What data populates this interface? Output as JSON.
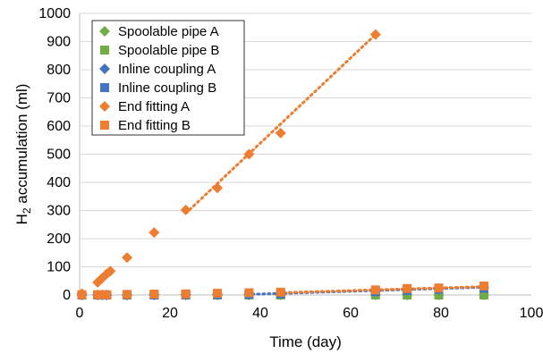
{
  "chart_data": {
    "type": "scatter",
    "xlabel": "Time (day)",
    "ylabel": "H₂ accumulation (ml)",
    "xlim": [
      0,
      100
    ],
    "ylim": [
      0,
      1000
    ],
    "x_ticks": [
      0,
      20,
      40,
      60,
      80,
      100
    ],
    "y_ticks": [
      0,
      100,
      200,
      300,
      400,
      500,
      600,
      700,
      800,
      900,
      1000
    ],
    "grid": "horizontal",
    "legend_position": "top-left",
    "colors": {
      "green": "#70AD47",
      "blue": "#4472C4",
      "orange": "#ED7D31"
    },
    "series": [
      {
        "name": "Spoolable pipe A",
        "marker": "diamond",
        "color": "#70AD47",
        "x": [
          0.5,
          4,
          5,
          6,
          10.5,
          16.5,
          23.5,
          30.5,
          37.5,
          44.5,
          65.5,
          72.5,
          79.5,
          89.5
        ],
        "y": [
          0,
          0,
          0,
          0,
          0,
          0,
          0,
          0,
          0,
          0,
          0,
          0,
          0,
          0
        ]
      },
      {
        "name": "Spoolable pipe B",
        "marker": "square",
        "color": "#70AD47",
        "x": [
          0.5,
          4,
          5,
          6,
          10.5,
          16.5,
          23.5,
          30.5,
          37.5,
          44.5,
          65.5,
          72.5,
          79.5,
          89.5
        ],
        "y": [
          0,
          0,
          0,
          0,
          0,
          0,
          0,
          0,
          0,
          0,
          0,
          0,
          0,
          0
        ]
      },
      {
        "name": "Inline coupling A",
        "marker": "diamond",
        "color": "#4472C4",
        "trend": true,
        "trend_x": [
          37,
          90
        ],
        "trend_y": [
          2,
          28
        ],
        "x": [
          0.5,
          4,
          5,
          6,
          10.5,
          16.5,
          23.5,
          30.5,
          37.5,
          44.5,
          65.5,
          72.5,
          79.5,
          89.5
        ],
        "y": [
          0,
          0,
          0,
          0,
          0,
          1,
          1,
          2,
          3,
          5,
          14,
          18,
          21,
          26
        ]
      },
      {
        "name": "Inline coupling B",
        "marker": "square",
        "color": "#4472C4",
        "x": [
          0.5,
          4,
          5,
          6,
          10.5,
          16.5,
          23.5,
          30.5,
          37.5,
          44.5,
          65.5,
          72.5,
          79.5,
          89.5
        ],
        "y": [
          0,
          0,
          0,
          0,
          0,
          0,
          1,
          1,
          2,
          4,
          12,
          16,
          20,
          24
        ]
      },
      {
        "name": "End fitting A",
        "marker": "diamond",
        "color": "#ED7D31",
        "trend": true,
        "trend_x": [
          23.5,
          65.5
        ],
        "trend_y": [
          290,
          925
        ],
        "x": [
          0.5,
          4,
          5,
          6,
          6.8,
          10.5,
          16.5,
          23.5,
          30.5,
          37.5,
          44.5,
          65.5
        ],
        "y": [
          5,
          45,
          60,
          75,
          85,
          133,
          222,
          302,
          380,
          500,
          575,
          925
        ]
      },
      {
        "name": "End fitting B",
        "marker": "square",
        "color": "#ED7D31",
        "trend": true,
        "trend_x": [
          44,
          90
        ],
        "trend_y": [
          8,
          30
        ],
        "x": [
          0.5,
          4,
          5,
          6,
          10.5,
          16.5,
          23.5,
          30.5,
          37.5,
          44.5,
          65.5,
          72.5,
          79.5,
          89.5
        ],
        "y": [
          1,
          1,
          1,
          1,
          2,
          3,
          4,
          6,
          8,
          10,
          18,
          23,
          25,
          32
        ]
      }
    ]
  }
}
